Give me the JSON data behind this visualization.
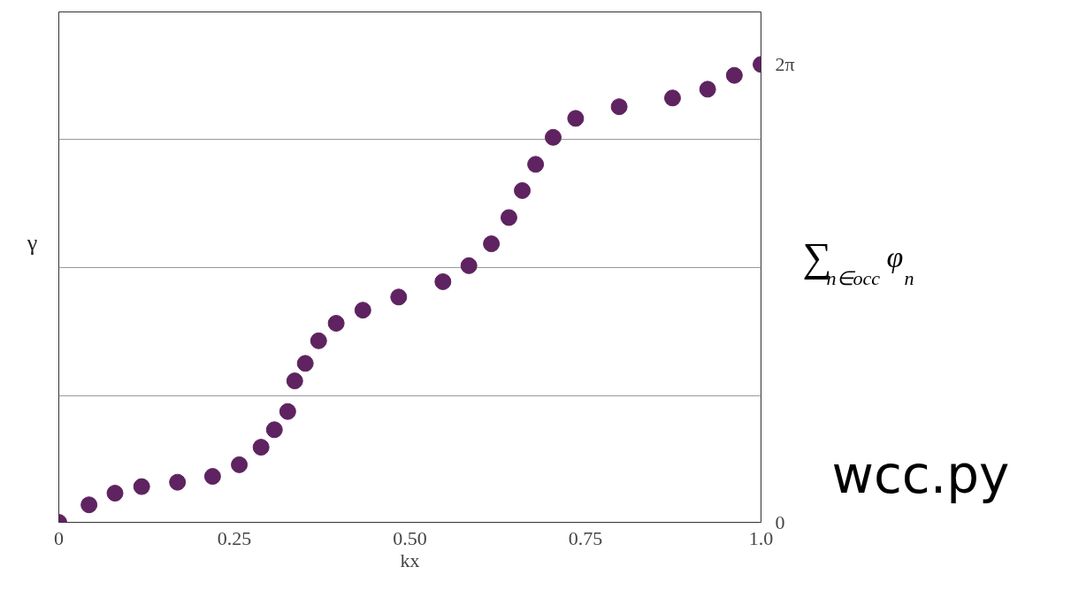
{
  "chart_data": {
    "type": "scatter",
    "xlabel": "kx",
    "ylabel": "γ",
    "annotations": [
      "∑$_{n∈occ}$ φ$_{n}$",
      "wcc.py"
    ],
    "x": [
      0,
      0.043,
      0.08,
      0.118,
      0.169,
      0.219,
      0.257,
      0.288,
      0.307,
      0.326,
      0.336,
      0.351,
      0.37,
      0.395,
      0.433,
      0.484,
      0.547,
      0.584,
      0.616,
      0.641,
      0.66,
      0.679,
      0.704,
      0.736,
      0.798,
      0.874,
      0.924,
      0.962,
      1.0
    ],
    "series": [
      {
        "color": "#5e2360",
        "values": [
          0,
          0.24,
          0.4,
          0.49,
          0.55,
          0.63,
          0.79,
          1.03,
          1.27,
          1.52,
          1.94,
          2.18,
          2.49,
          2.73,
          2.91,
          3.09,
          3.3,
          3.52,
          3.82,
          4.18,
          4.55,
          4.91,
          5.28,
          5.54,
          5.7,
          5.82,
          5.94,
          6.13,
          6.28
        ]
      }
    ],
    "xlim": [
      0,
      1
    ],
    "xticks": [
      0,
      0.25,
      {
        "value": 0.5,
        "label": "0.50"
      },
      0.75,
      {
        "value": 1,
        "label": "1.0"
      }
    ],
    "ylim": [
      0,
      7.0
    ],
    "yticks": [
      0,
      {
        "value": 1.735,
        "label": null
      },
      {
        "value": 3.493,
        "label": null
      },
      {
        "value": 5.252,
        "label": null
      },
      {
        "value": 6.2832,
        "label": "2π"
      }
    ],
    "grid": "y",
    "marker": "circle"
  }
}
